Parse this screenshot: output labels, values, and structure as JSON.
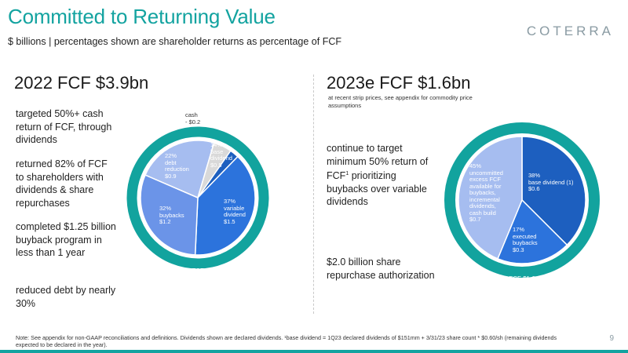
{
  "header": {
    "title": "Committed to Returning Value",
    "subtitle": "$ billions  |  percentages shown are shareholder returns as percentage of FCF",
    "logo_text": "COTERRA"
  },
  "left": {
    "title": "2022 FCF $3.9bn",
    "bullets": [
      "targeted 50%+ cash return of FCF, through dividends",
      "returned 82% of FCF to shareholders with dividends & share repurchases",
      "completed $1.25 billion buyback program in less than 1 year",
      "reduced debt by nearly 30%"
    ]
  },
  "right": {
    "title": "2023e FCF $1.6bn",
    "note": "at recent strip prices, see appendix for commodity price assumptions",
    "bullet1_main": "continue to target minimum 50% return of FCF",
    "bullet1_sup": "1",
    "bullet1_rest": " prioritizing buybacks over variable dividends",
    "bullet2": "$2.0 billion share repurchase authorization"
  },
  "chart_data": [
    {
      "type": "pie",
      "title": "2022 FCF $3.9bn",
      "ring_label": [
        "FCF",
        "$3.9"
      ],
      "total": 3.9,
      "slices": [
        {
          "name": "base dividend",
          "pct": "14%",
          "value": 0.5,
          "value_label": "$0.5",
          "label_lines": [
            "14%",
            "base",
            "dividend",
            "$0.5"
          ],
          "color": "#1d5fbf"
        },
        {
          "name": "variable dividend",
          "pct": "37%",
          "value": 1.5,
          "value_label": "$1.5",
          "label_lines": [
            "37%",
            "variable",
            "dividend",
            "$1.5"
          ],
          "color": "#2c73dc"
        },
        {
          "name": "buybacks",
          "pct": "32%",
          "value": 1.2,
          "value_label": "$1.2",
          "label_lines": [
            "32%",
            "buybacks",
            "$1.2"
          ],
          "color": "#6b94e8"
        },
        {
          "name": "debt reduction",
          "pct": "22%",
          "value": 0.9,
          "value_label": "$0.9",
          "label_lines": [
            "22%",
            "debt",
            "reduction",
            "$0.9"
          ],
          "color": "#a6bdf0"
        },
        {
          "name": "cash",
          "value": 0.2,
          "value_label": "- $0.2",
          "label_lines": [
            "cash",
            "- $0.2"
          ],
          "color": "#d9d9d9"
        }
      ],
      "colors": {
        "ring": "#12a39e"
      }
    },
    {
      "type": "pie",
      "title": "2023e FCF $1.6bn",
      "ring_label": [
        "FCF $1.6"
      ],
      "total": 1.6,
      "slices": [
        {
          "name": "base dividend (1)",
          "pct": "38%",
          "value": 0.6,
          "value_label": "$0.6",
          "label_lines": [
            "38%",
            "base dividend (1)",
            "$0.6"
          ],
          "color": "#1d5fbf"
        },
        {
          "name": "executed buybacks",
          "pct": "17%",
          "value": 0.3,
          "value_label": "$0.3",
          "label_lines": [
            "17%",
            "executed",
            "buybacks",
            "$0.3"
          ],
          "color": "#2c73dc"
        },
        {
          "name": "uncommitted excess FCF available for buybacks, incremental dividends, cash build",
          "pct": "45%",
          "value": 0.7,
          "value_label": "$0.7",
          "label_lines": [
            "45%",
            "uncommitted",
            "excess FCF",
            "available for",
            "buybacks,",
            "incremental",
            "dividends,",
            "cash build",
            "$0.7"
          ],
          "color": "#a6bdf0"
        }
      ],
      "colors": {
        "ring": "#12a39e"
      }
    }
  ],
  "footnote": "Note: See appendix for non-GAAP reconciliations and definitions. Dividends shown are declared dividends. ¹base dividend = 1Q23 declared dividends of $151mm + 3/31/23 share count * $0.60/sh (remaining dividends expected to be declared in the year).",
  "page_number": "9"
}
